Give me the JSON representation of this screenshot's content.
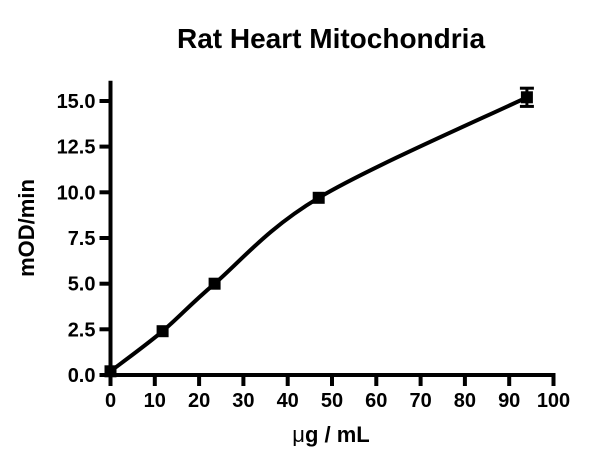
{
  "page": {
    "background": "#ffffff",
    "foreground": "#000000"
  },
  "chart_data": {
    "type": "line",
    "title": "Rat Heart Mitochondria",
    "xlabel": "μg / mL",
    "xlabel_mu": "μ",
    "xlabel_rest": "g / mL",
    "ylabel": "mOD/min",
    "xlim": [
      0,
      100
    ],
    "ylim": [
      0,
      16
    ],
    "x_tick_values": [
      0,
      10,
      20,
      30,
      40,
      50,
      60,
      70,
      80,
      90,
      100
    ],
    "x_tick_labels": [
      "0",
      "10",
      "20",
      "30",
      "40",
      "50",
      "60",
      "70",
      "80",
      "90",
      "100"
    ],
    "y_tick_values": [
      0,
      2.5,
      5,
      7.5,
      10,
      12.5,
      15
    ],
    "y_tick_labels": [
      "0.0",
      "2.5",
      "5.0",
      "7.5",
      "10.0",
      "12.5",
      "15.0"
    ],
    "grid": false,
    "legend": false,
    "line_color": "#000000",
    "series": [
      {
        "name": "Rat Heart Mitochondria",
        "marker": "filled-square",
        "color": "#000000",
        "line_style": "smooth",
        "x": [
          0,
          11.75,
          23.5,
          47,
          94
        ],
        "y": [
          0.2,
          2.4,
          5.0,
          9.7,
          15.2
        ],
        "y_err": [
          0,
          0,
          0,
          0,
          0.5
        ]
      }
    ]
  }
}
